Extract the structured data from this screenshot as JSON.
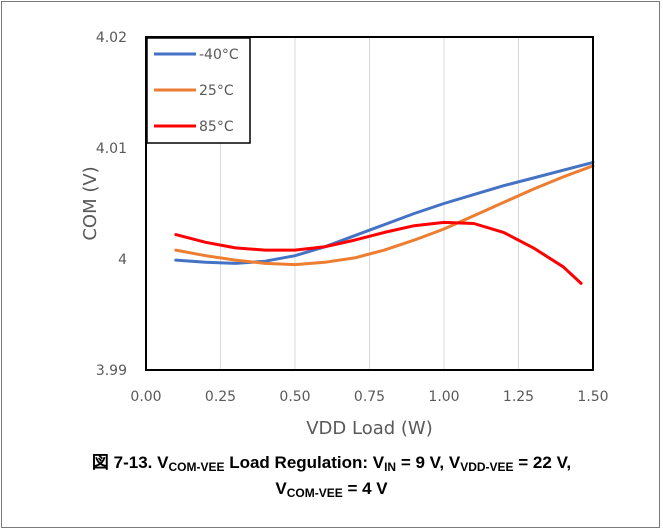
{
  "chart_data": {
    "type": "line",
    "xlabel": "VDD Load (W)",
    "ylabel": "COM (V)",
    "xlim": [
      0,
      1.5
    ],
    "ylim": [
      3.99,
      4.02
    ],
    "xticks": [
      "0.00",
      "0.25",
      "0.50",
      "0.75",
      "1.00",
      "1.25",
      "1.50"
    ],
    "yticks": [
      "3.99",
      "4",
      "4.01",
      "4.02"
    ],
    "grid": "vertical",
    "legend": "top-left",
    "series": [
      {
        "name": "-40°C",
        "color": "#4472C4",
        "x": [
          0.1,
          0.2,
          0.3,
          0.4,
          0.5,
          0.6,
          0.7,
          0.8,
          0.9,
          1.0,
          1.1,
          1.2,
          1.3,
          1.4,
          1.5
        ],
        "y": [
          3.9999,
          3.9997,
          3.9996,
          3.9998,
          4.0003,
          4.0011,
          4.0021,
          4.0031,
          4.0041,
          4.005,
          4.0058,
          4.0066,
          4.0073,
          4.008,
          4.0087
        ]
      },
      {
        "name": "25°C",
        "color": "#ED7D31",
        "x": [
          0.1,
          0.2,
          0.3,
          0.4,
          0.5,
          0.6,
          0.7,
          0.8,
          0.9,
          1.0,
          1.1,
          1.2,
          1.3,
          1.4,
          1.5
        ],
        "y": [
          4.0008,
          4.0003,
          3.9999,
          3.9996,
          3.9995,
          3.9997,
          4.0001,
          4.0008,
          4.0017,
          4.0027,
          4.0039,
          4.0051,
          4.0063,
          4.0074,
          4.0084
        ]
      },
      {
        "name": "85°C",
        "color": "#FF0000",
        "x": [
          0.1,
          0.2,
          0.3,
          0.4,
          0.5,
          0.6,
          0.7,
          0.8,
          0.9,
          1.0,
          1.1,
          1.2,
          1.3,
          1.4,
          1.46
        ],
        "y": [
          4.0022,
          4.0015,
          4.001,
          4.0008,
          4.0008,
          4.0011,
          4.0017,
          4.0024,
          4.003,
          4.0033,
          4.0032,
          4.0024,
          4.001,
          3.9993,
          3.9978
        ]
      }
    ]
  },
  "caption": {
    "prefix": "図 7-13. V",
    "sub1": "COM-VEE",
    "text1": " Load Regulation: V",
    "sub2": "IN",
    "text2": " = 9 V, V",
    "sub3": "VDD-VEE",
    "text3": " = 22 V,",
    "line2_prefix": "V",
    "sub4": "COM-VEE",
    "line2_text": " = 4 V"
  }
}
